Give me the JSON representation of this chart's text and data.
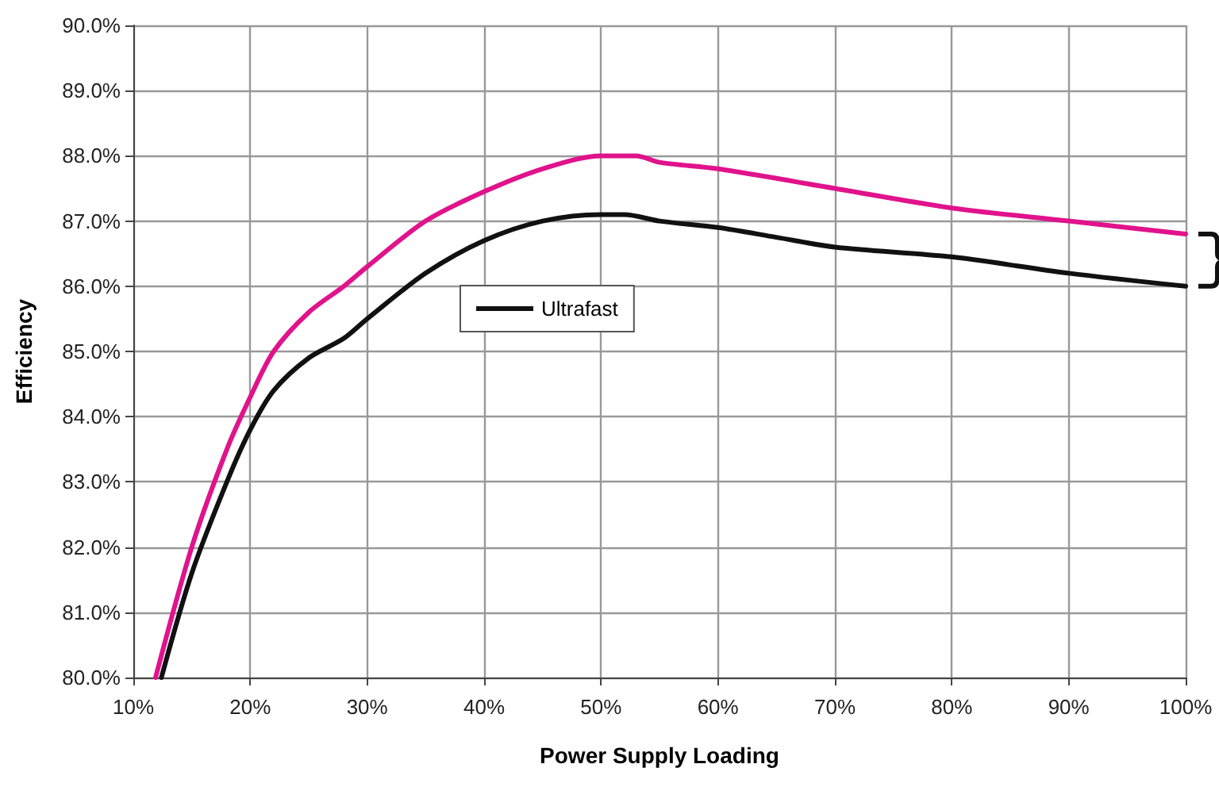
{
  "chart_data": {
    "type": "line",
    "xlabel": "Power Supply Loading",
    "ylabel": "Efficiency",
    "xlim": [
      10,
      100
    ],
    "xticks": [
      {
        "value": 10,
        "label": "10%"
      },
      {
        "value": 20,
        "label": "20%"
      },
      {
        "value": 30,
        "label": "30%"
      },
      {
        "value": 40,
        "label": "40%"
      },
      {
        "value": 50,
        "label": "50%"
      },
      {
        "value": 60,
        "label": "60%"
      },
      {
        "value": 70,
        "label": "70%"
      },
      {
        "value": 80,
        "label": "80%"
      },
      {
        "value": 90,
        "label": "90%"
      },
      {
        "value": 100,
        "label": "100%"
      }
    ],
    "ylim": [
      80,
      90
    ],
    "yticks": [
      {
        "value": 80,
        "label": "80.0%"
      },
      {
        "value": 81,
        "label": "81.0%"
      },
      {
        "value": 82,
        "label": "82.0%"
      },
      {
        "value": 83,
        "label": "83.0%"
      },
      {
        "value": 84,
        "label": "84.0%"
      },
      {
        "value": 85,
        "label": "85.0%"
      },
      {
        "value": 86,
        "label": "86.0%"
      },
      {
        "value": 87,
        "label": "87.0%"
      },
      {
        "value": 88,
        "label": "88.0%"
      },
      {
        "value": 89,
        "label": "89.0%"
      },
      {
        "value": 90,
        "label": "90.0%"
      }
    ],
    "series": [
      {
        "name": "Ultrafast",
        "color": "#111111",
        "x": [
          12.4,
          15,
          18,
          20,
          22,
          25,
          28,
          30,
          35,
          40,
          45,
          50,
          52,
          55,
          60,
          65,
          70,
          80,
          90,
          100
        ],
        "values": [
          80,
          81.6,
          83.0,
          83.8,
          84.4,
          84.9,
          85.2,
          85.5,
          86.2,
          86.7,
          87.0,
          87.1,
          87.1,
          87.0,
          86.9,
          86.75,
          86.6,
          86.45,
          86.2,
          86.0
        ]
      },
      {
        "color": "#e0138c",
        "x": [
          11.9,
          15,
          18,
          20,
          22,
          25,
          28,
          30,
          35,
          40,
          45,
          50,
          53,
          55,
          60,
          70,
          80,
          90,
          100
        ],
        "values": [
          80,
          82.0,
          83.5,
          84.3,
          85.0,
          85.6,
          86.0,
          86.3,
          87.0,
          87.45,
          87.8,
          88.0,
          88.0,
          87.9,
          87.8,
          87.5,
          87.2,
          87.0,
          86.8
        ]
      }
    ],
    "grid": true,
    "legend": "center",
    "marker": "none",
    "line_style": "solid"
  }
}
